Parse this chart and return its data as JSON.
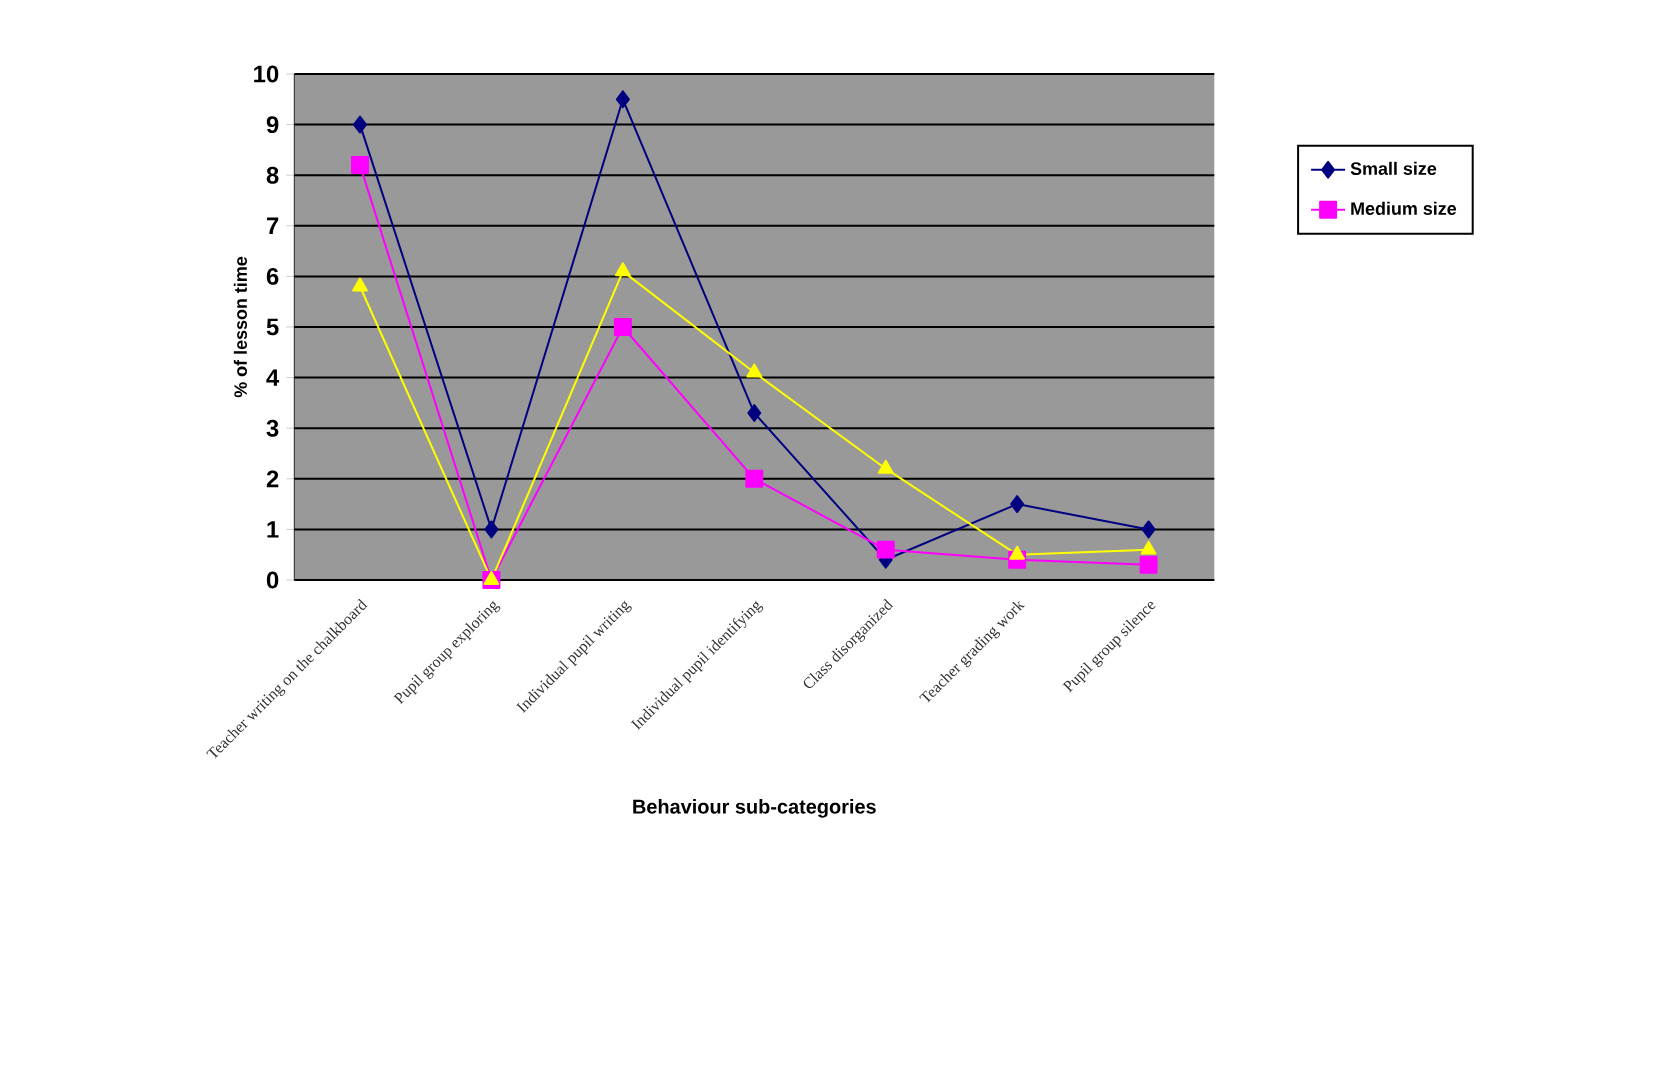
{
  "chart_data": {
    "type": "line",
    "xlabel": "Behaviour sub-categories",
    "ylabel": "% of lesson time",
    "categories": [
      "Teacher writing on the chalkboard",
      "Pupil group exploring",
      "Individual pupil writing",
      "Individual pupil identifying",
      "Class disorganized",
      "Teacher grading work",
      "Pupil group silence"
    ],
    "series": [
      {
        "name": "Small size",
        "color": "#000080",
        "marker": "diamond",
        "values": [
          9,
          1,
          9.5,
          3.3,
          0.4,
          1.5,
          1
        ]
      },
      {
        "name": "Medium size",
        "color": "#ff00ff",
        "marker": "square",
        "values": [
          8.2,
          0,
          5,
          2,
          0.6,
          0.4,
          0.3
        ]
      },
      {
        "color": "#ffff00",
        "marker": "triangle",
        "values": [
          5.8,
          0,
          6.1,
          4.1,
          2.2,
          0.5,
          0.6
        ]
      }
    ],
    "ylim": [
      0,
      10
    ],
    "yticks": [
      0,
      1,
      2,
      3,
      4,
      5,
      6,
      7,
      8,
      9,
      10
    ],
    "grid": "y",
    "legend": "right"
  }
}
